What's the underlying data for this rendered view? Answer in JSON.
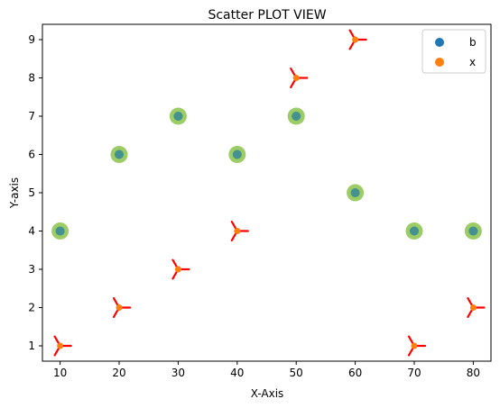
{
  "chart_data": {
    "type": "scatter",
    "title": "Scatter PLOT VIEW",
    "xlabel": "X-Axis",
    "ylabel": "Y-axis",
    "xlim": [
      7,
      83
    ],
    "ylim": [
      0.6,
      9.4
    ],
    "xticks": [
      10,
      20,
      30,
      40,
      50,
      60,
      70,
      80
    ],
    "yticks": [
      1,
      2,
      3,
      4,
      5,
      6,
      7,
      8,
      9
    ],
    "grid": false,
    "legend_position": "top-right",
    "series": [
      {
        "name": "b",
        "marker": "circle",
        "color": "#1f77b4",
        "halo_color": "#8bc34a",
        "x": [
          10,
          20,
          30,
          40,
          50,
          60,
          70,
          80
        ],
        "y": [
          4,
          6,
          7,
          6,
          7,
          5,
          4,
          4
        ]
      },
      {
        "name": "x",
        "marker": "tri-star",
        "color": "#ff7f0e",
        "star_color": "#ff0000",
        "x": [
          10,
          20,
          30,
          40,
          50,
          60,
          70,
          80
        ],
        "y": [
          1,
          2,
          3,
          4,
          8,
          9,
          1,
          2
        ]
      }
    ]
  }
}
